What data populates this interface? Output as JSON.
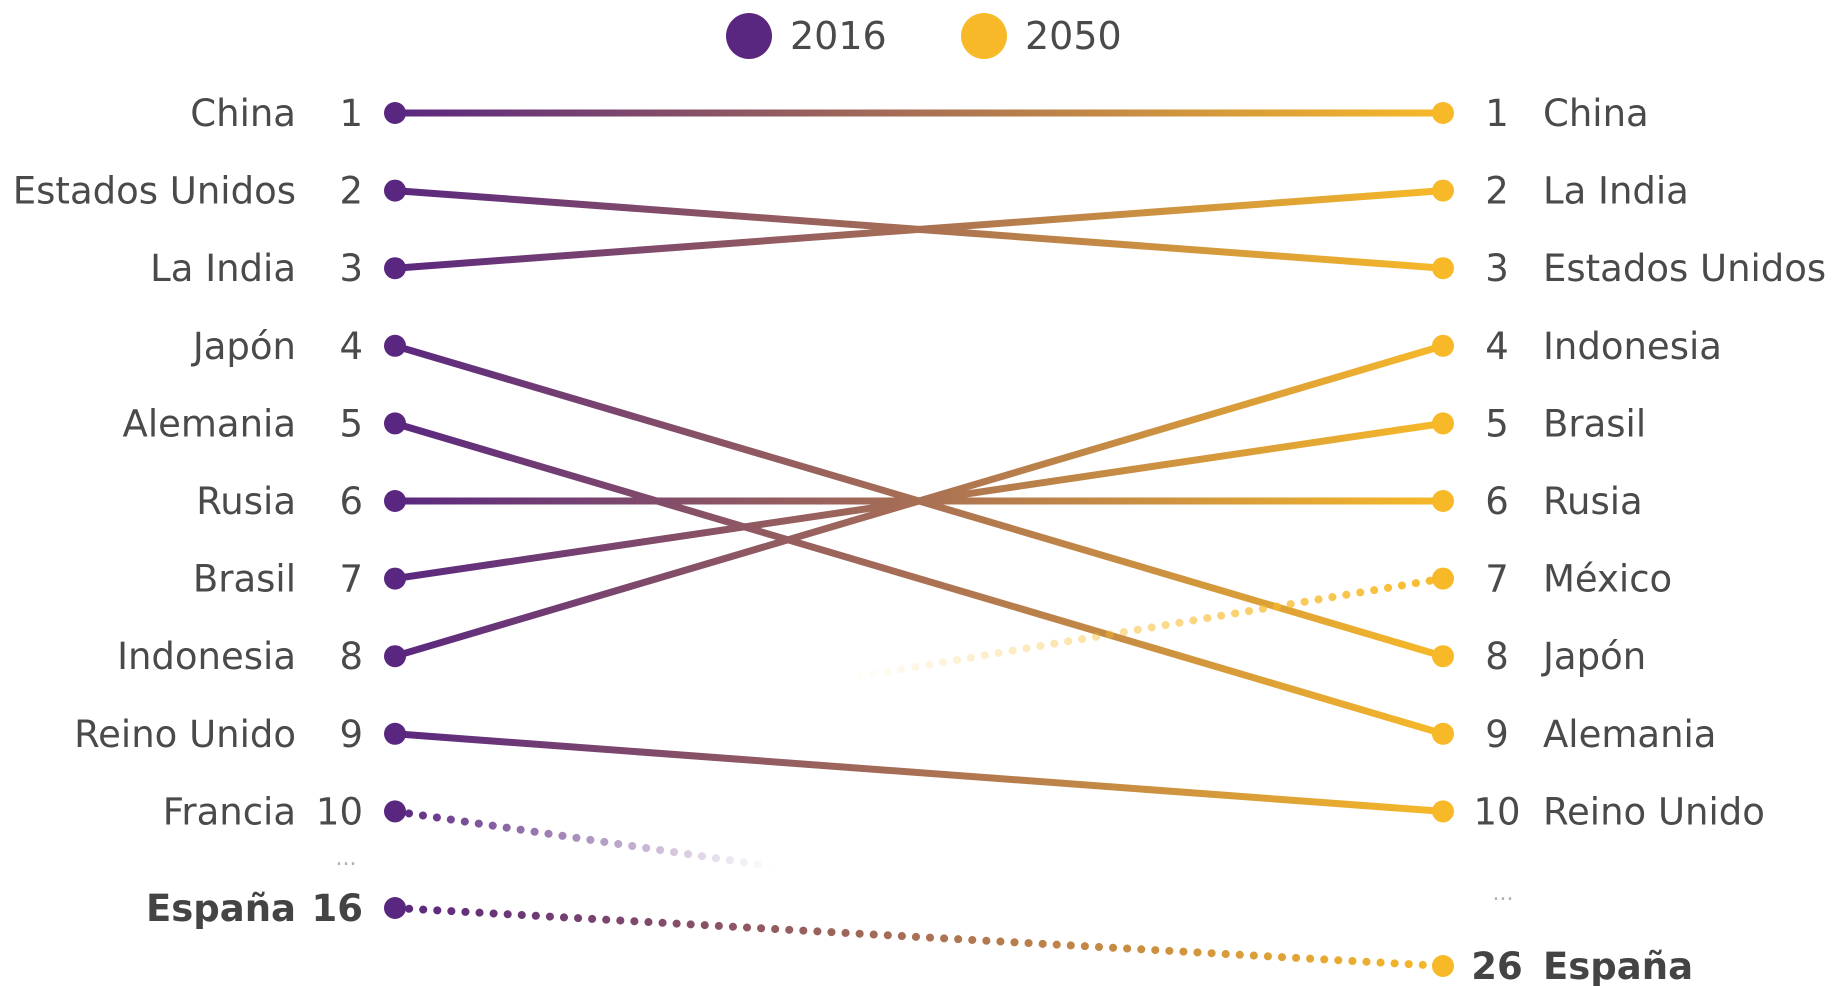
{
  "chart_data": {
    "type": "slope",
    "columns": [
      "2016",
      "2050"
    ],
    "legend": [
      {
        "label": "2016",
        "color": "#5a2780"
      },
      {
        "label": "2050",
        "color": "#f7b928"
      }
    ],
    "colors": {
      "start": "#5a2780",
      "end": "#f7b928",
      "label": "#4a4a4a"
    },
    "ellipsis": "...",
    "rows": [
      {
        "country": "China",
        "rank_2016": 1,
        "rank_2050": 1,
        "style": "solid"
      },
      {
        "country": "Estados Unidos",
        "rank_2016": 2,
        "rank_2050": 3,
        "style": "solid"
      },
      {
        "country": "La India",
        "rank_2016": 3,
        "rank_2050": 2,
        "style": "solid"
      },
      {
        "country": "Japón",
        "rank_2016": 4,
        "rank_2050": 8,
        "style": "solid"
      },
      {
        "country": "Alemania",
        "rank_2016": 5,
        "rank_2050": 9,
        "style": "solid"
      },
      {
        "country": "Rusia",
        "rank_2016": 6,
        "rank_2050": 6,
        "style": "solid"
      },
      {
        "country": "Brasil",
        "rank_2016": 7,
        "rank_2050": 5,
        "style": "solid"
      },
      {
        "country": "Indonesia",
        "rank_2016": 8,
        "rank_2050": 4,
        "style": "solid"
      },
      {
        "country": "Reino Unido",
        "rank_2016": 9,
        "rank_2050": 10,
        "style": "solid"
      },
      {
        "country": "Francia",
        "rank_2016": 10,
        "rank_2050": null,
        "style": "dotted-fade"
      },
      {
        "country": "México",
        "rank_2016": null,
        "rank_2050": 7,
        "style": "dotted-fade"
      },
      {
        "country": "España",
        "rank_2016": 16,
        "rank_2050": 26,
        "style": "dotted",
        "bold": true
      }
    ]
  }
}
